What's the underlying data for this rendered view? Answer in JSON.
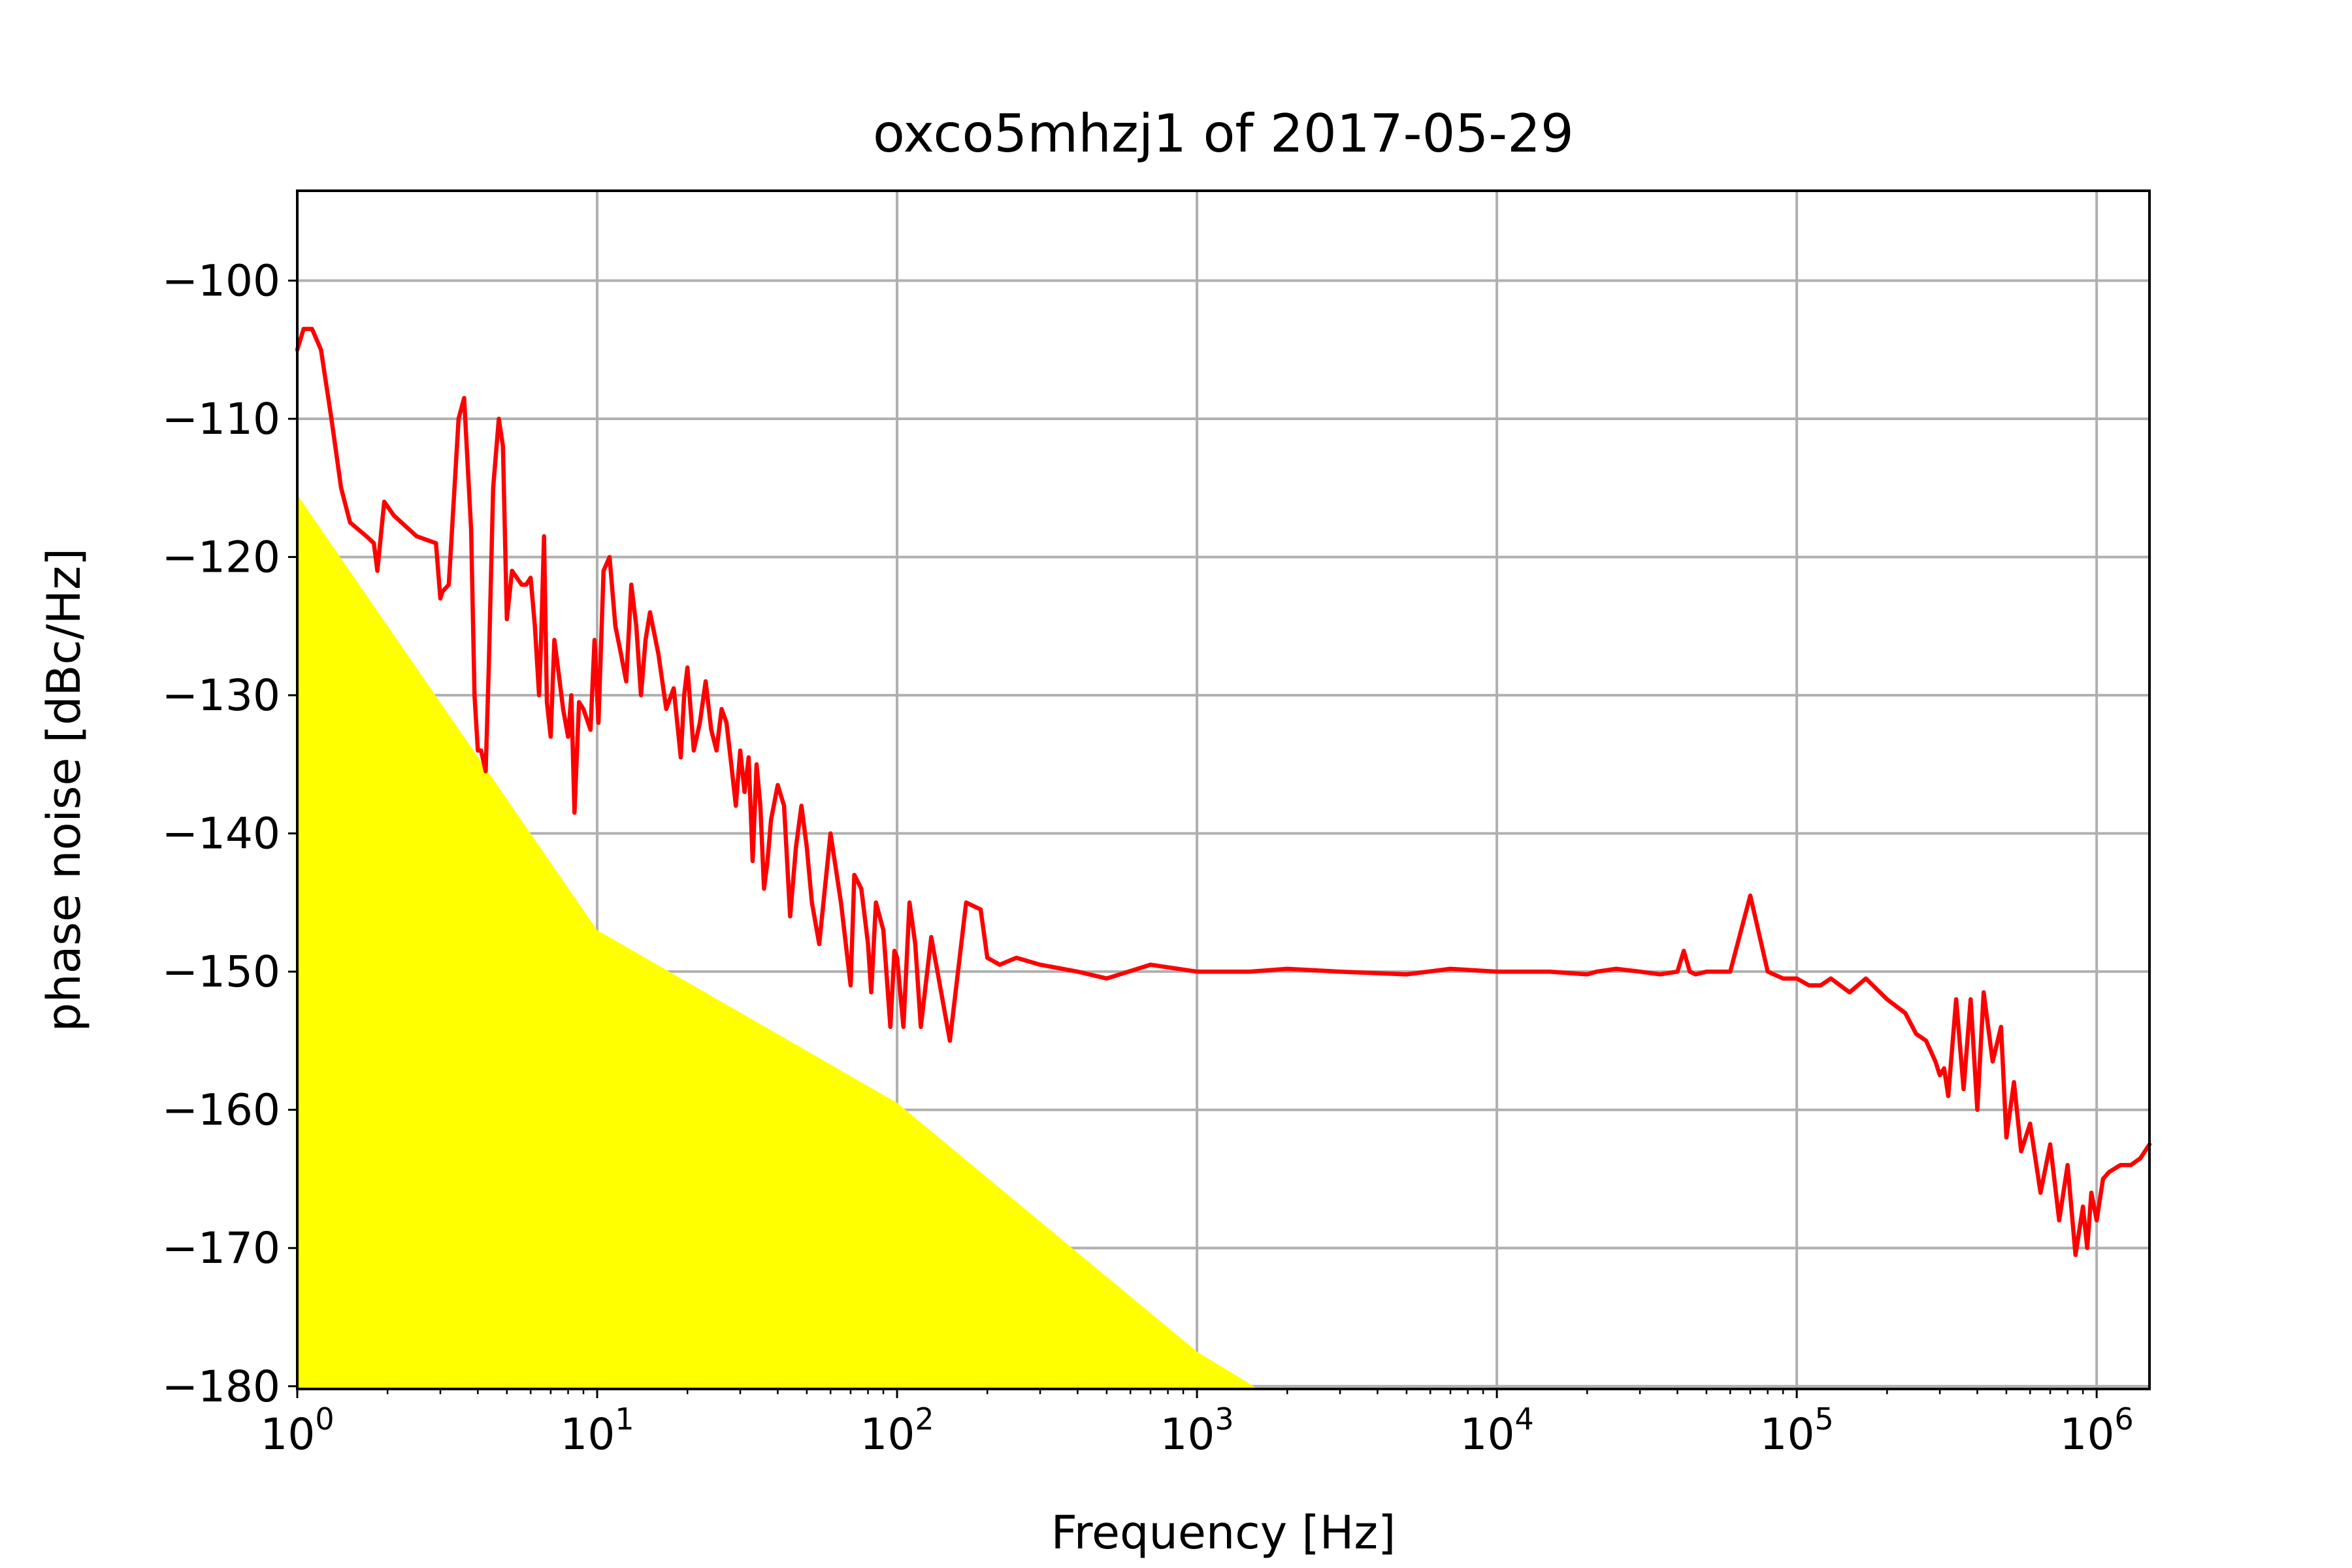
{
  "chart_data": {
    "type": "line",
    "title": "oxco5mhzj1 of 2017-05-29",
    "xlabel": "Frequency [Hz]",
    "ylabel": "phase noise [dBc/Hz]",
    "xscale": "log",
    "xlim": [
      1,
      1500000
    ],
    "ylim": [
      -180.2,
      -93.5
    ],
    "grid": true,
    "x_ticks": [
      {
        "value": 1,
        "base": "10",
        "exp": "0"
      },
      {
        "value": 10,
        "base": "10",
        "exp": "1"
      },
      {
        "value": 100,
        "base": "10",
        "exp": "2"
      },
      {
        "value": 1000,
        "base": "10",
        "exp": "3"
      },
      {
        "value": 10000,
        "base": "10",
        "exp": "4"
      },
      {
        "value": 100000,
        "base": "10",
        "exp": "5"
      },
      {
        "value": 1000000,
        "base": "10",
        "exp": "6"
      }
    ],
    "y_ticks": [
      {
        "value": -100,
        "label": "−100"
      },
      {
        "value": -110,
        "label": "−110"
      },
      {
        "value": -120,
        "label": "−120"
      },
      {
        "value": -130,
        "label": "−130"
      },
      {
        "value": -140,
        "label": "−140"
      },
      {
        "value": -150,
        "label": "−150"
      },
      {
        "value": -160,
        "label": "−160"
      },
      {
        "value": -170,
        "label": "−170"
      },
      {
        "value": -180,
        "label": "−180"
      }
    ],
    "area": {
      "color": "#ffff00",
      "x": [
        1,
        10,
        100,
        1000,
        1600
      ],
      "y": [
        -115.5,
        -147,
        -159.5,
        -177.5,
        -180.2
      ]
    },
    "series": [
      {
        "color": "#ff0000",
        "x": [
          1,
          1.05,
          1.12,
          1.2,
          1.3,
          1.4,
          1.5,
          1.7,
          1.8,
          1.85,
          1.95,
          2.1,
          2.5,
          2.9,
          3.0,
          3.05,
          3.2,
          3.45,
          3.6,
          3.8,
          3.9,
          4.0,
          4.1,
          4.25,
          4.35,
          4.5,
          4.7,
          4.85,
          5.0,
          5.2,
          5.6,
          5.8,
          6.0,
          6.2,
          6.4,
          6.5,
          6.65,
          6.8,
          7.0,
          7.2,
          7.4,
          7.7,
          8.0,
          8.2,
          8.4,
          8.7,
          9.0,
          9.5,
          9.8,
          10.1,
          10.5,
          11.0,
          11.5,
          12.0,
          12.5,
          13.0,
          13.5,
          14.0,
          14.5,
          15.0,
          16.0,
          17.0,
          18.0,
          19.0,
          19.5,
          20.0,
          21.0,
          22.0,
          23.0,
          24.0,
          25.0,
          26.0,
          27.0,
          28.0,
          29.0,
          30.0,
          31.0,
          32.0,
          33.0,
          34.0,
          35.0,
          36.0,
          37.0,
          38.0,
          40.0,
          42.0,
          44.0,
          46.0,
          48.0,
          50.0,
          52.0,
          55.0,
          60.0,
          65.0,
          70.0,
          72.0,
          74.0,
          76.0,
          78.0,
          80.0,
          82.0,
          85.0,
          90.0,
          95.0,
          98.0,
          100.0,
          105.0,
          110.0,
          115.0,
          120.0,
          130.0,
          150.0,
          170.0,
          190.0,
          200.0,
          220.0,
          250.0,
          300.0,
          400.0,
          500.0,
          700.0,
          1000.0,
          1500.0,
          2000.0,
          3000.0,
          5000.0,
          7000.0,
          10000.0,
          15000.0,
          20000.0,
          21500.0,
          25000.0,
          30000.0,
          35000.0,
          40000.0,
          42000.0,
          44000.0,
          46000.0,
          50000.0,
          60000.0,
          70000.0,
          80000.0,
          90000.0,
          100000.0,
          110000.0,
          120000.0,
          130000.0,
          150000.0,
          170000.0,
          200000.0,
          230000.0,
          250000.0,
          270000.0,
          290000.0,
          300000.0,
          310000.0,
          320000.0,
          340000.0,
          360000.0,
          380000.0,
          400000.0,
          420000.0,
          450000.0,
          480000.0,
          500000.0,
          530000.0,
          560000.0,
          600000.0,
          650000.0,
          700000.0,
          750000.0,
          800000.0,
          850000.0,
          900000.0,
          930000.0,
          960000.0,
          1000000.0,
          1050000.0,
          1100000.0,
          1200000.0,
          1300000.0,
          1400000.0,
          1500000.0
        ],
        "y": [
          -105,
          -103.5,
          -103.5,
          -105,
          -110,
          -115,
          -117.5,
          -118.5,
          -119,
          -121,
          -116,
          -117,
          -118.5,
          -119,
          -123,
          -122.5,
          -122,
          -110,
          -108.5,
          -118,
          -130,
          -134,
          -134,
          -135.5,
          -128,
          -115,
          -110,
          -112,
          -124.5,
          -121,
          -122,
          -122,
          -121.5,
          -125,
          -130,
          -126,
          -118.5,
          -130.5,
          -133,
          -126,
          -128,
          -131,
          -133,
          -130,
          -138.5,
          -130.5,
          -131,
          -132.5,
          -126,
          -132,
          -121,
          -120,
          -125,
          -127,
          -129,
          -122,
          -125,
          -130,
          -126,
          -124,
          -127,
          -131,
          -129.5,
          -134.5,
          -130,
          -128,
          -134,
          -132,
          -129,
          -132.5,
          -134,
          -131,
          -132,
          -135,
          -138,
          -134,
          -137,
          -134.5,
          -142,
          -135,
          -138,
          -144,
          -142,
          -139,
          -136.5,
          -138,
          -146,
          -141,
          -138,
          -141,
          -145,
          -148,
          -140,
          -145,
          -151,
          -143,
          -143.5,
          -144,
          -146,
          -148,
          -151.5,
          -145,
          -147,
          -154,
          -148.5,
          -149,
          -154,
          -145,
          -148,
          -154,
          -147.5,
          -155,
          -145,
          -145.5,
          -149,
          -149.5,
          -149,
          -149.5,
          -150,
          -150.5,
          -149.5,
          -150,
          -150,
          -149.8,
          -150,
          -150.2,
          -149.8,
          -150,
          -150,
          -150.2,
          -150,
          -149.8,
          -150,
          -150.2,
          -150,
          -148.5,
          -150,
          -150.2,
          -150,
          -150,
          -144.5,
          -150,
          -150.5,
          -150.5,
          -151,
          -151,
          -150.5,
          -151.5,
          -150.5,
          -152,
          -153,
          -154.5,
          -155,
          -156.5,
          -157.5,
          -157,
          -159,
          -152,
          -158.5,
          -152,
          -160,
          -151.5,
          -156.5,
          -154,
          -162,
          -158,
          -163,
          -161,
          -166,
          -162.5,
          -168,
          -164,
          -170.5,
          -167,
          -170,
          -166,
          -168,
          -165,
          -164.5,
          -164,
          -164,
          -163.5,
          -162.5
        ]
      }
    ]
  }
}
